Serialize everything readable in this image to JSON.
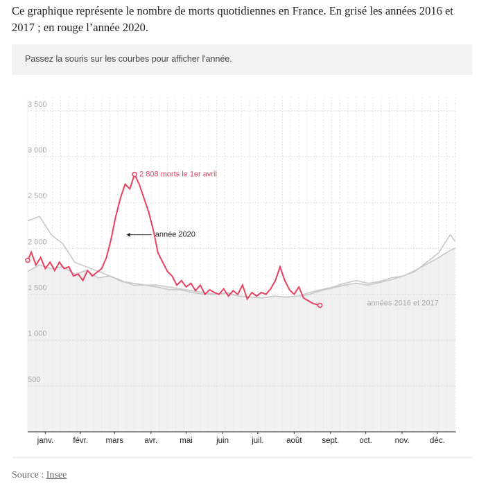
{
  "intro": "Ce graphique représente le nombre de morts quotidiennes en France. En grisé les années 2016 et 2017 ; en rouge l’année 2020.",
  "hint": "Passez la souris sur les courbes pour afficher l'année.",
  "source": {
    "prefix": "Source :",
    "link": "Insee"
  },
  "chart_data": {
    "type": "line",
    "xlim": [
      1,
      366
    ],
    "ylim": [
      0,
      3500
    ],
    "xticks": [
      {
        "value": 16,
        "label": "janv."
      },
      {
        "value": 46,
        "label": "févr."
      },
      {
        "value": 75,
        "label": "mars"
      },
      {
        "value": 106,
        "label": "avr."
      },
      {
        "value": 136,
        "label": "mai"
      },
      {
        "value": 167,
        "label": "juin"
      },
      {
        "value": 197,
        "label": "juil."
      },
      {
        "value": 228,
        "label": "août"
      },
      {
        "value": 259,
        "label": "sept."
      },
      {
        "value": 289,
        "label": "oct."
      },
      {
        "value": 320,
        "label": "nov."
      },
      {
        "value": 350,
        "label": "déc."
      }
    ],
    "yticks": [
      500,
      {
        "value": 1000,
        "label": "1 000"
      },
      {
        "value": 1500,
        "label": "1 500"
      },
      {
        "value": 2000,
        "label": "2 000"
      },
      {
        "value": 2500,
        "label": "2 500"
      },
      {
        "value": 3000,
        "label": "3 000"
      },
      {
        "value": 3500,
        "label": "3 500"
      }
    ],
    "series": [
      {
        "color": "#c8c8c8",
        "x": [
          1,
          11,
          21,
          31,
          41,
          51,
          61,
          71,
          81,
          91,
          101,
          111,
          121,
          131,
          141,
          151,
          161,
          171,
          181,
          191,
          201,
          211,
          221,
          231,
          241,
          251,
          261,
          271,
          281,
          291,
          301,
          311,
          321,
          331,
          341,
          351,
          361,
          365
        ],
        "values": [
          1750,
          1820,
          1780,
          1800,
          1720,
          1760,
          1680,
          1700,
          1640,
          1620,
          1600,
          1600,
          1580,
          1560,
          1540,
          1520,
          1500,
          1510,
          1480,
          1470,
          1460,
          1480,
          1470,
          1480,
          1500,
          1540,
          1570,
          1600,
          1620,
          1600,
          1630,
          1660,
          1700,
          1760,
          1830,
          1900,
          1980,
          2000
        ]
      },
      {
        "color": "#c8c8c8",
        "x": [
          1,
          11,
          21,
          31,
          41,
          51,
          61,
          71,
          81,
          91,
          101,
          111,
          121,
          131,
          141,
          151,
          161,
          171,
          181,
          191,
          201,
          211,
          221,
          231,
          241,
          251,
          261,
          271,
          281,
          291,
          301,
          311,
          321,
          331,
          341,
          351,
          361,
          365
        ],
        "values": [
          2300,
          2350,
          2150,
          2050,
          1850,
          1800,
          1750,
          1700,
          1650,
          1600,
          1600,
          1580,
          1550,
          1550,
          1520,
          1500,
          1500,
          1520,
          1480,
          1470,
          1460,
          1480,
          1470,
          1480,
          1520,
          1550,
          1580,
          1620,
          1650,
          1620,
          1640,
          1680,
          1700,
          1750,
          1850,
          1950,
          2150,
          2080
        ]
      },
      {
        "color": "#e8405f",
        "x": [
          1,
          4,
          8,
          12,
          16,
          20,
          24,
          28,
          32,
          36,
          40,
          44,
          48,
          52,
          56,
          60,
          64,
          68,
          72,
          76,
          80,
          84,
          88,
          92,
          96,
          100,
          104,
          108,
          112,
          116,
          120,
          124,
          128,
          132,
          136,
          140,
          144,
          148,
          152,
          156,
          160,
          164,
          168,
          172,
          176,
          180,
          184,
          188,
          192,
          196,
          200,
          204,
          208,
          212,
          216,
          220,
          224,
          228,
          232,
          236,
          240,
          244,
          250
        ],
        "values": [
          1870,
          1960,
          1820,
          1900,
          1780,
          1850,
          1760,
          1850,
          1780,
          1800,
          1700,
          1720,
          1650,
          1760,
          1700,
          1740,
          1780,
          1900,
          2100,
          2350,
          2550,
          2700,
          2650,
          2808,
          2700,
          2550,
          2400,
          2200,
          1950,
          1850,
          1750,
          1700,
          1600,
          1650,
          1580,
          1620,
          1540,
          1600,
          1500,
          1550,
          1520,
          1500,
          1560,
          1480,
          1540,
          1500,
          1600,
          1450,
          1520,
          1480,
          1520,
          1500,
          1560,
          1650,
          1800,
          1650,
          1550,
          1500,
          1580,
          1460,
          1430,
          1400,
          1380
        ]
      }
    ],
    "annotations": [
      {
        "text": "2 808 morts le 1er avril",
        "x": 92,
        "y": 2808
      },
      {
        "text": "année 2020",
        "x": 106,
        "y": 2150
      },
      {
        "text": "années 2016 et 2017",
        "x": 290,
        "y": 1400
      }
    ]
  }
}
